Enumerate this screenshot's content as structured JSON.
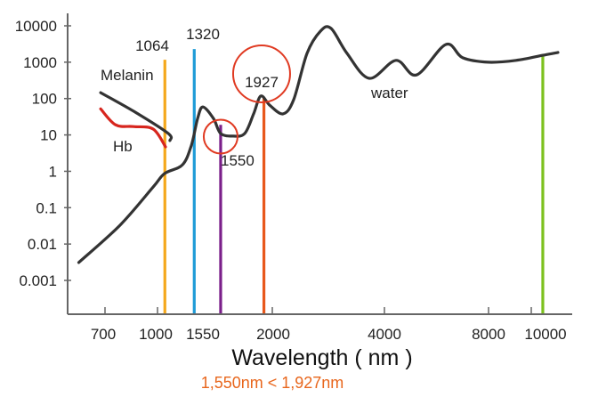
{
  "chart_data": {
    "type": "line",
    "title": "",
    "xlabel": "Wavelength ( nm )",
    "ylabel": "",
    "yscale": "log",
    "ylim": [
      0.001,
      10000
    ],
    "grid": false,
    "y_ticks": [
      "10000",
      "1000",
      "100",
      "10",
      "1",
      "0.1",
      "0.01",
      "0.001"
    ],
    "y_tick_values": [
      10000,
      1000,
      100,
      10,
      1,
      0.1,
      0.01,
      0.001
    ],
    "x_ticks": [
      {
        "value": 700,
        "label": "700",
        "tick": true
      },
      {
        "value": 1000,
        "label": "1000",
        "tick": true
      },
      {
        "value": 1430,
        "label": "1550",
        "tick": false
      },
      {
        "value": 2000,
        "label": "2000",
        "tick": true
      },
      {
        "value": 4000,
        "label": "4000",
        "tick": true
      },
      {
        "value": 8000,
        "label": "8000",
        "tick": true
      },
      {
        "value": 10000,
        "label": "",
        "tick": true
      },
      {
        "value": 10750,
        "label": "10000",
        "tick": false
      }
    ],
    "series": [
      {
        "name": "water",
        "label": "water",
        "color": "#333333",
        "x": [
          550,
          786,
          975,
          1062,
          1217,
          1295,
          1349,
          1395,
          1488,
          1550,
          1659,
          1760,
          1837,
          1899,
          1977,
          2190,
          2381,
          2619,
          2857,
          3048,
          3333,
          3730,
          4444,
          5231,
          6359,
          7009,
          8000,
          9292,
          10542,
          11250
        ],
        "y": [
          0.0031,
          0.033,
          0.37,
          0.87,
          1.5,
          5.2,
          28,
          59,
          28,
          11,
          9.3,
          11,
          38,
          117,
          66,
          38,
          93,
          1740,
          7100,
          8500,
          1740,
          360,
          1120,
          445,
          3070,
          1320,
          1000,
          1120,
          1550,
          1850
        ]
      },
      {
        "name": "Melanin",
        "label": "Melanin",
        "color": "#333333",
        "x": [
          675,
          863,
          1093,
          1108
        ],
        "y": [
          145,
          45,
          11,
          7
        ]
      },
      {
        "name": "Hb",
        "label": "Hb",
        "color": "#d7261e",
        "x": [
          675,
          760,
          863,
          975,
          1070
        ],
        "y": [
          52,
          19,
          17,
          14.5,
          4.7
        ]
      }
    ],
    "markers": [
      {
        "name": "1064",
        "label": "1064",
        "wavelength": 1064,
        "top": 1170,
        "color": "#f5a81c"
      },
      {
        "name": "1320",
        "label": "1320",
        "wavelength": 1320,
        "top": 2300,
        "color": "#1e9bd7"
      },
      {
        "name": "1550",
        "label": "1550",
        "wavelength": 1550,
        "top": 19,
        "color": "#7b1f8a"
      },
      {
        "name": "1927",
        "label": "1927",
        "wavelength": 1927,
        "top": 104,
        "color": "#e8581c"
      },
      {
        "name": "10600",
        "label": "",
        "wavelength": 10540,
        "top": 1550,
        "color": "#7dc11e"
      }
    ],
    "highlight_circles": [
      {
        "name": "1550",
        "wavelength": 1550,
        "value": 9,
        "color": "#e03a22"
      },
      {
        "name": "1927",
        "wavelength": 1899,
        "value": 230,
        "color": "#e03a22",
        "label": "1927"
      }
    ],
    "annotations": {
      "melanin": "Melanin",
      "hb": "Hb",
      "water": "water",
      "m1064": "1064",
      "m1320": "1320",
      "m1550": "1550"
    },
    "caption": "1,550nm  <  1,927nm",
    "caption_color": "#e8661c"
  }
}
